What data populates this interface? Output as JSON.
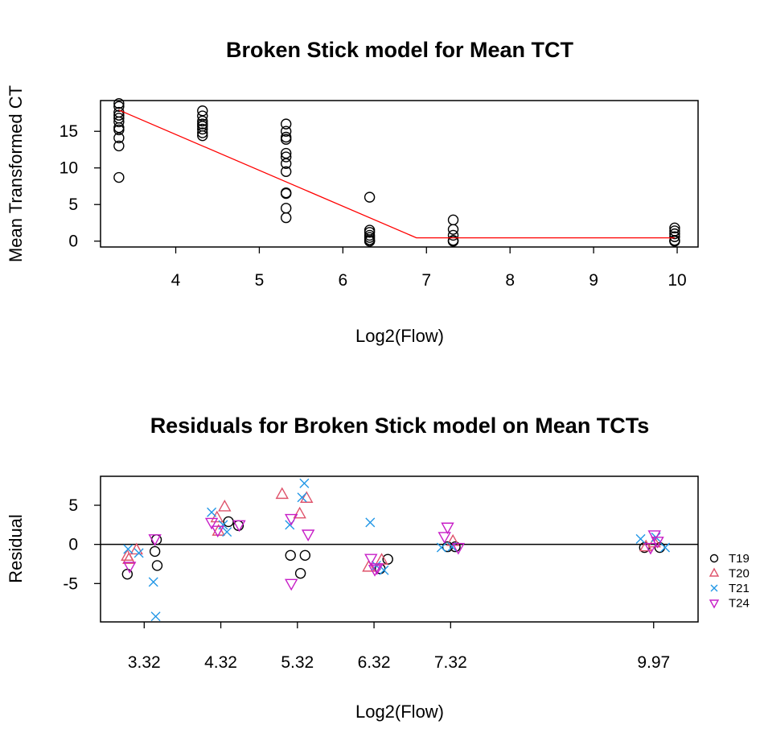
{
  "chart_data": [
    {
      "type": "scatter",
      "title": "Broken Stick model for Mean TCT",
      "xlabel": "Log2(Flow)",
      "ylabel": "Mean Transformed CT",
      "xlim": [
        3.1,
        10.25
      ],
      "ylim": [
        -0.8,
        19.2
      ],
      "xticks": [
        4,
        5,
        6,
        7,
        8,
        9,
        10
      ],
      "yticks": [
        0,
        5,
        10,
        15
      ],
      "grid": false,
      "series": [
        {
          "type": "scatter",
          "marker": "open-circle",
          "color": "#000000",
          "points": [
            [
              3.32,
              18.8
            ],
            [
              3.32,
              18.4
            ],
            [
              3.32,
              17.6
            ],
            [
              3.32,
              17.2
            ],
            [
              3.32,
              16.8
            ],
            [
              3.32,
              16.3
            ],
            [
              3.32,
              15.5
            ],
            [
              3.32,
              15.2
            ],
            [
              3.32,
              14.1
            ],
            [
              3.32,
              13.0
            ],
            [
              3.32,
              8.7
            ],
            [
              4.32,
              17.8
            ],
            [
              4.32,
              17.1
            ],
            [
              4.32,
              16.4
            ],
            [
              4.32,
              16.0
            ],
            [
              4.32,
              15.7
            ],
            [
              4.32,
              15.3
            ],
            [
              4.32,
              14.8
            ],
            [
              4.32,
              14.4
            ],
            [
              5.32,
              16.0
            ],
            [
              5.32,
              15.0
            ],
            [
              5.32,
              14.2
            ],
            [
              5.32,
              13.9
            ],
            [
              5.32,
              12.0
            ],
            [
              5.32,
              11.5
            ],
            [
              5.32,
              10.6
            ],
            [
              5.32,
              9.5
            ],
            [
              5.32,
              6.6
            ],
            [
              5.32,
              6.5
            ],
            [
              5.32,
              4.5
            ],
            [
              5.32,
              3.2
            ],
            [
              6.32,
              6.0
            ],
            [
              6.32,
              1.5
            ],
            [
              6.32,
              1.2
            ],
            [
              6.32,
              0.8
            ],
            [
              6.32,
              0.5
            ],
            [
              6.32,
              0.2
            ],
            [
              6.32,
              0.0
            ],
            [
              6.32,
              0.0
            ],
            [
              7.32,
              2.9
            ],
            [
              7.32,
              1.6
            ],
            [
              7.32,
              0.8
            ],
            [
              7.32,
              0.1
            ],
            [
              7.32,
              0.0
            ],
            [
              7.32,
              0.0
            ],
            [
              9.97,
              1.8
            ],
            [
              9.97,
              1.4
            ],
            [
              9.97,
              1.0
            ],
            [
              9.97,
              0.6
            ],
            [
              9.97,
              0.1
            ],
            [
              9.97,
              0.0
            ],
            [
              9.97,
              0.0
            ]
          ]
        },
        {
          "type": "line",
          "color": "#ff0000",
          "points": [
            [
              3.32,
              17.9
            ],
            [
              6.88,
              0.45
            ],
            [
              9.97,
              0.45
            ]
          ]
        }
      ]
    },
    {
      "type": "scatter",
      "title": "Residuals for Broken Stick model on Mean TCTs",
      "xlabel": "Log2(Flow)",
      "ylabel": "Residual",
      "xlim": [
        2.75,
        10.55
      ],
      "ylim": [
        -9.9,
        8.7
      ],
      "xticks": [
        3.32,
        4.32,
        5.32,
        6.32,
        7.32,
        9.97
      ],
      "xtick_labels": [
        "3.32",
        "4.32",
        "5.32",
        "6.32",
        "7.32",
        "9.97"
      ],
      "yticks": [
        -5,
        0,
        5
      ],
      "hline": 0,
      "legend": {
        "position": "right",
        "entries": [
          {
            "name": "T19",
            "marker": "circle",
            "color": "#000000"
          },
          {
            "name": "T20",
            "marker": "triangle-up",
            "color": "#df536b"
          },
          {
            "name": "T21",
            "marker": "x",
            "color": "#2297e6"
          },
          {
            "name": "T24",
            "marker": "triangle-down",
            "color": "#c71ec7"
          }
        ]
      },
      "series": [
        {
          "name": "T19",
          "marker": "circle",
          "color": "#000000",
          "points": [
            [
              3.1,
              -3.8
            ],
            [
              3.46,
              -0.9
            ],
            [
              3.48,
              0.6
            ],
            [
              3.49,
              -2.7
            ],
            [
              4.42,
              2.9
            ],
            [
              4.55,
              2.4
            ],
            [
              5.23,
              -1.4
            ],
            [
              5.36,
              -3.7
            ],
            [
              5.42,
              -1.4
            ],
            [
              6.4,
              -3.1
            ],
            [
              6.5,
              -1.9
            ],
            [
              7.28,
              -0.3
            ],
            [
              7.38,
              -0.3
            ],
            [
              9.85,
              -0.4
            ],
            [
              10.05,
              -0.4
            ]
          ]
        },
        {
          "name": "T20",
          "marker": "triangle-up",
          "color": "#df536b",
          "points": [
            [
              3.1,
              -1.5
            ],
            [
              3.12,
              -1.9
            ],
            [
              3.22,
              -0.7
            ],
            [
              4.27,
              3.4
            ],
            [
              4.37,
              4.8
            ],
            [
              4.29,
              1.7
            ],
            [
              5.12,
              6.4
            ],
            [
              5.35,
              3.9
            ],
            [
              5.44,
              5.9
            ],
            [
              6.25,
              -2.9
            ],
            [
              6.42,
              -2.0
            ],
            [
              7.35,
              0.4
            ],
            [
              9.87,
              -0.3
            ],
            [
              9.98,
              0.2
            ]
          ]
        },
        {
          "name": "T21",
          "marker": "x",
          "color": "#2297e6",
          "points": [
            [
              3.11,
              -0.6
            ],
            [
              3.25,
              -1.1
            ],
            [
              3.44,
              -4.8
            ],
            [
              3.47,
              -9.2
            ],
            [
              4.2,
              4.1
            ],
            [
              4.35,
              2.5
            ],
            [
              4.4,
              1.6
            ],
            [
              5.22,
              2.5
            ],
            [
              5.38,
              6.0
            ],
            [
              5.41,
              7.8
            ],
            [
              6.27,
              2.8
            ],
            [
              6.35,
              -2.7
            ],
            [
              6.45,
              -3.3
            ],
            [
              7.2,
              -0.4
            ],
            [
              7.34,
              -0.3
            ],
            [
              9.8,
              0.7
            ],
            [
              10.0,
              0.9
            ],
            [
              10.12,
              -0.4
            ]
          ]
        },
        {
          "name": "T24",
          "marker": "triangle-down",
          "color": "#c71ec7",
          "points": [
            [
              3.13,
              -2.8
            ],
            [
              3.46,
              0.7
            ],
            [
              4.2,
              2.8
            ],
            [
              4.28,
              1.8
            ],
            [
              4.56,
              2.5
            ],
            [
              5.24,
              -5.0
            ],
            [
              5.24,
              3.3
            ],
            [
              5.46,
              1.3
            ],
            [
              6.28,
              -1.8
            ],
            [
              6.33,
              -3.2
            ],
            [
              6.36,
              -3.0
            ],
            [
              7.24,
              1.0
            ],
            [
              7.28,
              2.2
            ],
            [
              7.42,
              -0.4
            ],
            [
              9.93,
              -0.4
            ],
            [
              9.98,
              1.2
            ],
            [
              10.02,
              0.4
            ]
          ]
        }
      ]
    }
  ]
}
